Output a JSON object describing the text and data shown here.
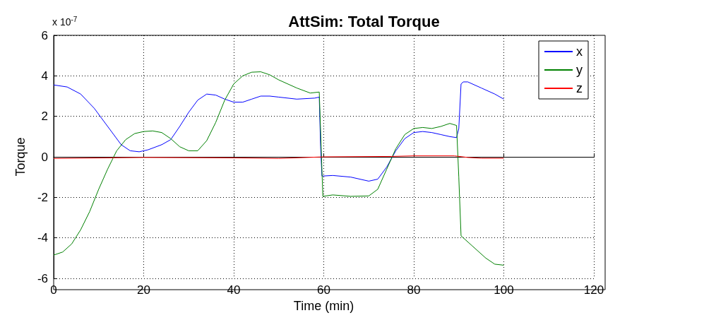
{
  "chart_data": {
    "type": "line",
    "title": "AttSim: Total Torque",
    "xlabel": "Time (min)",
    "ylabel": "Torque",
    "annotations": [
      "x 10$^{-7}$"
    ],
    "xlim": [
      0,
      120
    ],
    "xticks": [
      0,
      20,
      40,
      60,
      80,
      100,
      120
    ],
    "ylim": [
      -6,
      6
    ],
    "yticks": [
      -6,
      -4,
      -2,
      0,
      2,
      4,
      6
    ],
    "grid": true,
    "legend": "top right",
    "marker": "none",
    "line_style": "solid",
    "series": [
      {
        "name": "x",
        "color": "#0000ff",
        "x": [
          0,
          3,
          6,
          9,
          12,
          15,
          17,
          19,
          21,
          24,
          26,
          28,
          30,
          32,
          34,
          36,
          38,
          40,
          42,
          44,
          46,
          48,
          50,
          54,
          58,
          59,
          59.3,
          59.6,
          62,
          66,
          70,
          72,
          74,
          76,
          78,
          80,
          82,
          84,
          86,
          88,
          89.5,
          90,
          90.5,
          91,
          92,
          95,
          98,
          100
        ],
        "values": [
          3.55,
          3.45,
          3.1,
          2.4,
          1.5,
          0.6,
          0.3,
          0.25,
          0.35,
          0.6,
          0.85,
          1.5,
          2.2,
          2.8,
          3.1,
          3.05,
          2.85,
          2.7,
          2.7,
          2.85,
          3.0,
          3.0,
          2.95,
          2.85,
          2.9,
          2.95,
          0.5,
          -0.95,
          -0.92,
          -1.0,
          -1.2,
          -1.1,
          -0.5,
          0.3,
          0.9,
          1.2,
          1.25,
          1.2,
          1.1,
          1.0,
          0.95,
          1.4,
          3.6,
          3.7,
          3.7,
          3.4,
          3.1,
          2.85
        ]
      },
      {
        "name": "y",
        "color": "#008000",
        "x": [
          0,
          2,
          4,
          6,
          8,
          10,
          12,
          14,
          16,
          18,
          20,
          22,
          24,
          26,
          28,
          30,
          32,
          34,
          36,
          38,
          40,
          42,
          44,
          46,
          48,
          50,
          54,
          57,
          59,
          59.5,
          59.8,
          62,
          66,
          70,
          72,
          74,
          76,
          78,
          80,
          82,
          84,
          86,
          88,
          89.5,
          90,
          90.5,
          91,
          93,
          96,
          98,
          100
        ],
        "values": [
          -4.85,
          -4.7,
          -4.3,
          -3.6,
          -2.7,
          -1.6,
          -0.6,
          0.3,
          0.85,
          1.15,
          1.25,
          1.28,
          1.2,
          0.9,
          0.5,
          0.3,
          0.3,
          0.8,
          1.7,
          2.8,
          3.6,
          4.0,
          4.18,
          4.2,
          4.05,
          3.8,
          3.4,
          3.15,
          3.2,
          0,
          -1.95,
          -1.88,
          -1.95,
          -1.93,
          -1.6,
          -0.6,
          0.4,
          1.1,
          1.4,
          1.45,
          1.4,
          1.5,
          1.65,
          1.55,
          -1,
          -3.9,
          -4.0,
          -4.4,
          -5.0,
          -5.3,
          -5.35
        ]
      },
      {
        "name": "z",
        "color": "#ff0000",
        "x": [
          0,
          20,
          40,
          50,
          60,
          75,
          80,
          89,
          92,
          95,
          100
        ],
        "values": [
          -0.08,
          -0.03,
          -0.05,
          -0.08,
          0,
          0.02,
          0.05,
          0.05,
          -0.03,
          -0.07,
          -0.07
        ]
      }
    ]
  }
}
